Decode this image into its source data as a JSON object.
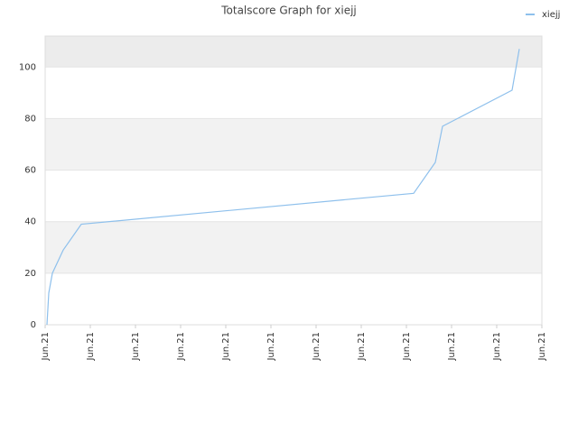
{
  "chart_data": {
    "type": "line",
    "title": "Totalscore Graph for xiejj",
    "x": [
      0.04,
      0.08,
      0.16,
      0.4,
      0.8,
      8.16,
      8.64,
      8.8,
      10.34,
      10.5
    ],
    "series": [
      {
        "name": "xiejj",
        "color": "#8ec0ec",
        "values": [
          0,
          12.3,
          20,
          29,
          39,
          51,
          63,
          77,
          91,
          107
        ]
      }
    ],
    "xlim": [
      0,
      11
    ],
    "xticks": [
      {
        "value": 0,
        "label": "Jun.21"
      },
      {
        "value": 1,
        "label": "Jun.21"
      },
      {
        "value": 2,
        "label": "Jun.21"
      },
      {
        "value": 3,
        "label": "Jun.21"
      },
      {
        "value": 4,
        "label": "Jun.21"
      },
      {
        "value": 5,
        "label": "Jun.21"
      },
      {
        "value": 6,
        "label": "Jun.21"
      },
      {
        "value": 7,
        "label": "Jun.21"
      },
      {
        "value": 8,
        "label": "Jun.21"
      },
      {
        "value": 9,
        "label": "Jun.21"
      },
      {
        "value": 10,
        "label": "Jun.21"
      },
      {
        "value": 11,
        "label": "Jun.21"
      }
    ],
    "ylim": [
      0,
      112
    ],
    "yticks": [
      0,
      20,
      40,
      60,
      80,
      100
    ],
    "grid": true,
    "legend": "top-right"
  }
}
